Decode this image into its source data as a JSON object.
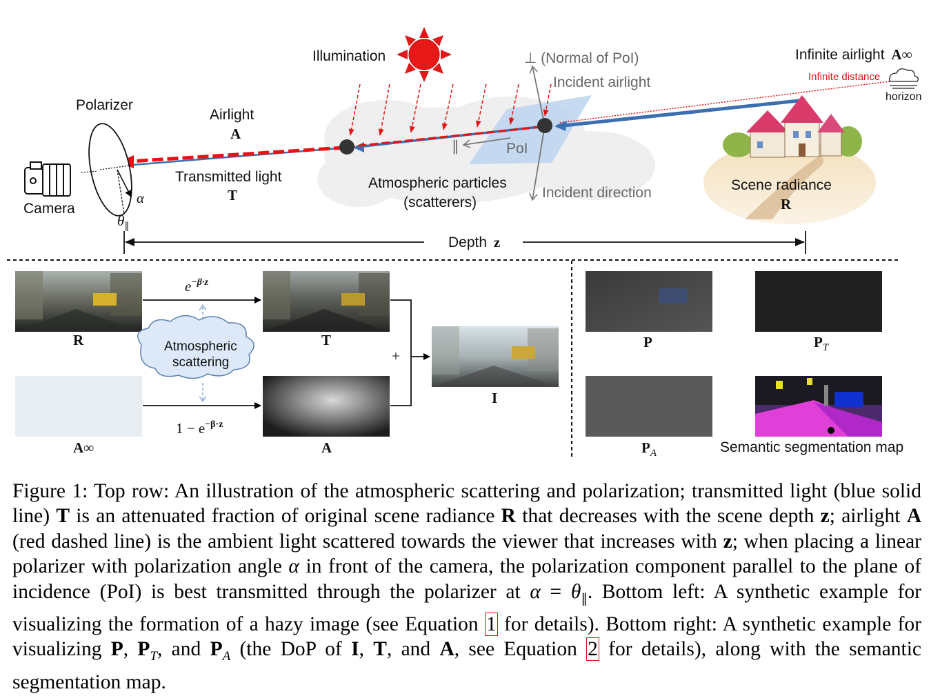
{
  "top_row": {
    "illumination": "Illumination",
    "normal": "⊥ (Normal of PoI)",
    "incident_airlight": "Incident airlight",
    "infinite_airlight": "Infinite airlight",
    "infinite_airlight_symbol": "A∞",
    "infinite_distance": "Infinite distance",
    "horizon": "horizon",
    "polarizer": "Polarizer",
    "airlight": "Airlight",
    "airlight_symbol": "A",
    "pol_parallel": "∥",
    "poi": "PoI",
    "transmitted_light": "Transmitted light",
    "transmitted_symbol": "T",
    "camera": "Camera",
    "alpha": "α",
    "theta": "θ",
    "theta_sub": "∥",
    "particles_line1": "Atmospheric particles",
    "particles_line2": "(scatterers)",
    "incident_direction": "Incident direction",
    "scene_radiance": "Scene radiance",
    "scene_radiance_symbol": "R",
    "depth": "Depth",
    "depth_symbol": "z"
  },
  "bottom_left": {
    "R": "R",
    "T": "T",
    "I": "I",
    "A": "A",
    "A_inf": "A∞",
    "exp_top": "e",
    "exp_top_sup": "−β·z",
    "exp_bottom": "1 − e",
    "exp_bottom_sup": "−β·z",
    "plus": "+",
    "cloud_line1": "Atmospheric",
    "cloud_line2": "scattering"
  },
  "bottom_right": {
    "P": "P",
    "PT": "P",
    "PT_sub": "T",
    "PA": "P",
    "PA_sub": "A",
    "seg": "Semantic segmentation map"
  },
  "caption": {
    "s1": "Figure 1: Top row: An illustration of the atmospheric scattering and polarization; transmitted light (blue solid line) ",
    "T": "T",
    "s2": " is an attenuated fraction of original scene radiance ",
    "R": "R",
    "s3": " that decreases with the scene depth ",
    "z": "z",
    "s4": "; airlight ",
    "A": "A",
    "s5": " (red dashed line) is the ambient light scattered towards the viewer that increases with ",
    "z2": "z",
    "s6": "; when placing a linear polarizer with polarization angle ",
    "alpha": "α",
    "s7": " in front of the camera, the polarization component parallel to the plane of incidence (PoI) is best transmitted through the polarizer at ",
    "alpha2": "α",
    "eq": " = ",
    "theta": "θ",
    "theta_sub": "∥",
    "s8": ". Bottom left: A synthetic example for visualizing the formation of a hazy image (see Equation ",
    "ref1": "1",
    "s9": " for details). Bottom right: A synthetic example for visualizing ",
    "P": "P",
    "comma1": ", ",
    "PT": "P",
    "PT_sub": "T",
    "s10": ", and ",
    "PA": "P",
    "PA_sub": "A",
    "s11": " (the DoP of ",
    "I": "I",
    "comma2": ", ",
    "T2": "T",
    "s12": ", and ",
    "A2": "A",
    "s13": ", see Equation ",
    "ref2": "2",
    "s14": " for details), along with the semantic segmentation map."
  },
  "colors": {
    "airlight_red": "#e81212",
    "transmitted_blue": "#3b6fb0",
    "sun_red": "#e01818",
    "poi_plane": "#bcd3ee",
    "cloud": "#eeeeee",
    "haze_cloud_fill": "#dde9f8"
  }
}
